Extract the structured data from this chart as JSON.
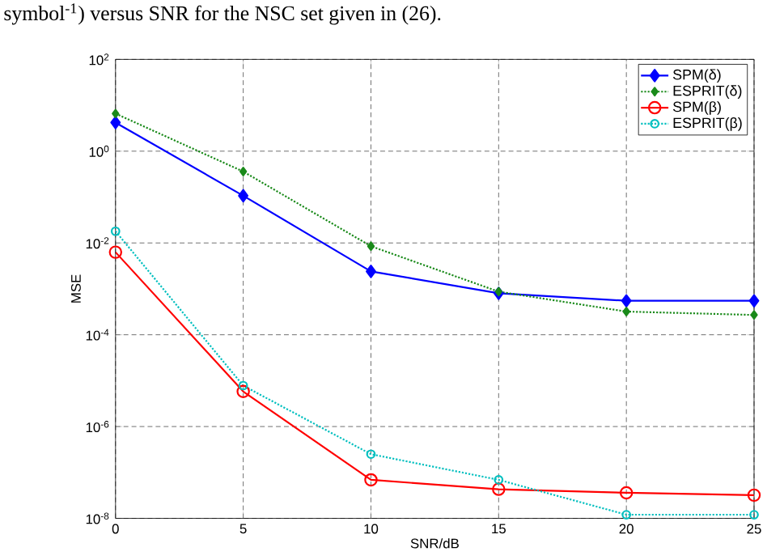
{
  "chart_data": {
    "type": "line",
    "annotations": [
      "symbol$^{-1}$) versus SNR for the NSC set given in (26)."
    ],
    "xlabel": "SNR/dB",
    "ylabel": "MSE",
    "x": [
      0,
      5,
      10,
      15,
      20,
      25
    ],
    "xlim": [
      0,
      25
    ],
    "xticks": [
      0,
      5,
      10,
      15,
      20,
      25
    ],
    "ylim": [
      1e-08,
      100
    ],
    "log": "y",
    "yticks": [
      {
        "value": 1e-08,
        "label": "10$^{-8}$"
      },
      {
        "value": 1e-06,
        "label": "10$^{-6}$"
      },
      {
        "value": 0.0001,
        "label": "10$^{-4}$"
      },
      {
        "value": 0.01,
        "label": "10$^{-2}$"
      },
      {
        "value": 1,
        "label": "10$^{0}$"
      },
      {
        "value": 100,
        "label": "10$^{2}$"
      }
    ],
    "grid": true,
    "legend": "top right",
    "series": [
      {
        "name": "SPM(δ)",
        "color": "#0000ff",
        "marker": "diamond",
        "line_style": "solid",
        "values": [
          4.2,
          0.107,
          0.0024,
          0.0008,
          0.00055,
          0.00055
        ]
      },
      {
        "name": "ESPRIT(δ)",
        "color": "#1a8a1a",
        "marker": "diamond",
        "line_style": "dotted",
        "values": [
          6.6,
          0.36,
          0.0085,
          0.00087,
          0.00032,
          0.00027
        ]
      },
      {
        "name": "SPM(β)",
        "color": "#ff0000",
        "marker": "circle",
        "line_style": "solid",
        "values": [
          0.0063,
          5.8e-06,
          6.9e-08,
          4.3e-08,
          3.6e-08,
          3.2e-08
        ]
      },
      {
        "name": "ESPRIT(β)",
        "color": "#00bfbf",
        "marker": "circle",
        "line_style": "dotted",
        "values": [
          0.018,
          7.8e-06,
          2.5e-07,
          6.9e-08,
          1.2e-08,
          1.2e-08
        ]
      }
    ]
  }
}
